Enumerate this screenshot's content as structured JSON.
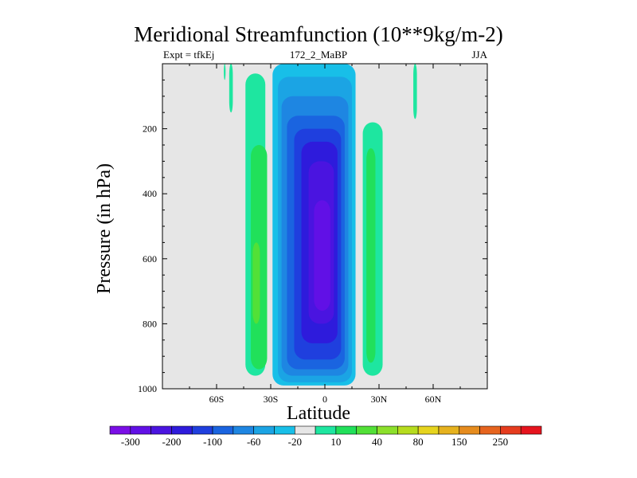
{
  "chart_data": {
    "type": "heatmap",
    "title": "Meridional Streamfunction (10**9kg/m-2)",
    "subtitle_left": "Expt = tfkEj",
    "subtitle_center": "172_2_MaBP",
    "subtitle_right": "JJA",
    "xlabel": "Latitude",
    "ylabel": "Pressure (in hPa)",
    "xlim": [
      -90,
      90
    ],
    "ylim": [
      1000,
      0
    ],
    "x_ticks": [
      {
        "value": -60,
        "label": "60S"
      },
      {
        "value": -30,
        "label": "30S"
      },
      {
        "value": 0,
        "label": "0"
      },
      {
        "value": 30,
        "label": "30N"
      },
      {
        "value": 60,
        "label": "60N"
      }
    ],
    "y_ticks": [
      {
        "value": 200,
        "label": "200"
      },
      {
        "value": 400,
        "label": "400"
      },
      {
        "value": 600,
        "label": "600"
      },
      {
        "value": 800,
        "label": "800"
      },
      {
        "value": 1000,
        "label": "1000"
      }
    ],
    "background_color": "#e6e6e6",
    "colorbar": {
      "colors": [
        "#7a0ee6",
        "#6110e6",
        "#4a14e0",
        "#2e1bdc",
        "#1f3fde",
        "#1a64e0",
        "#1e86e2",
        "#1ba4e4",
        "#18bfe8",
        "#e6e6e6",
        "#1ee6a0",
        "#21e05a",
        "#52e037",
        "#8ce02b",
        "#b6dc1e",
        "#e6d41e",
        "#e6b21e",
        "#e68c1e",
        "#e6641e",
        "#e63c1e",
        "#e6141e"
      ],
      "labels": [
        {
          "after_box": 1,
          "text": "-300"
        },
        {
          "after_box": 3,
          "text": "-200"
        },
        {
          "after_box": 5,
          "text": "-100"
        },
        {
          "after_box": 7,
          "text": "-60"
        },
        {
          "after_box": 9,
          "text": "-20"
        },
        {
          "after_box": 11,
          "text": "10"
        },
        {
          "after_box": 13,
          "text": "40"
        },
        {
          "after_box": 15,
          "text": "80"
        },
        {
          "after_box": 17,
          "text": "150"
        },
        {
          "after_box": 19,
          "text": "250"
        }
      ]
    },
    "cells": [
      {
        "lat": [
          -44,
          -33
        ],
        "p": [
          30,
          960
        ],
        "color": "#1ee6a0"
      },
      {
        "lat": [
          -41,
          -32
        ],
        "p": [
          250,
          940
        ],
        "color": "#21e05a"
      },
      {
        "lat": [
          -40,
          -36
        ],
        "p": [
          550,
          800
        ],
        "color": "#52e037"
      },
      {
        "lat": [
          -56,
          -55
        ],
        "p": [
          0,
          50
        ],
        "color": "#1ee6a0"
      },
      {
        "lat": [
          -53,
          -51
        ],
        "p": [
          0,
          150
        ],
        "color": "#1ee6a0"
      },
      {
        "lat": [
          -29,
          17
        ],
        "p": [
          0,
          990
        ],
        "color": "#18bfe8"
      },
      {
        "lat": [
          -26,
          15
        ],
        "p": [
          40,
          980
        ],
        "color": "#1ba4e4"
      },
      {
        "lat": [
          -24,
          13
        ],
        "p": [
          100,
          960
        ],
        "color": "#1e86e2"
      },
      {
        "lat": [
          -21,
          11
        ],
        "p": [
          160,
          940
        ],
        "color": "#1a64e0"
      },
      {
        "lat": [
          -17,
          9
        ],
        "p": [
          200,
          910
        ],
        "color": "#1f3fde"
      },
      {
        "lat": [
          -13,
          7
        ],
        "p": [
          240,
          860
        ],
        "color": "#2e1bdc"
      },
      {
        "lat": [
          -9,
          5
        ],
        "p": [
          300,
          800
        ],
        "color": "#4a14e0"
      },
      {
        "lat": [
          -6,
          3
        ],
        "p": [
          420,
          760
        ],
        "color": "#6110e6"
      },
      {
        "lat": [
          21,
          32
        ],
        "p": [
          180,
          960
        ],
        "color": "#1ee6a0"
      },
      {
        "lat": [
          23,
          28
        ],
        "p": [
          260,
          920
        ],
        "color": "#21e05a"
      },
      {
        "lat": [
          49,
          51
        ],
        "p": [
          0,
          170
        ],
        "color": "#1ee6a0"
      }
    ]
  }
}
